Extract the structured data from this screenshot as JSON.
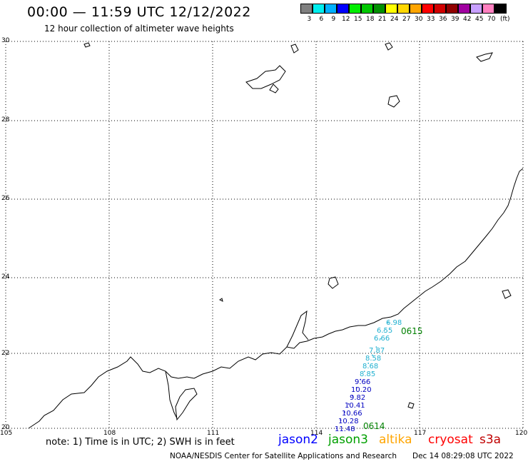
{
  "header": {
    "title": "00:00 — 11:59 UTC 12/12/2022",
    "subtitle": "12 hour collection of altimeter wave heights"
  },
  "legend": {
    "unit": "(ft)",
    "bins": [
      {
        "label": "3",
        "color": "#808080"
      },
      {
        "label": "6",
        "color": "#00eeee"
      },
      {
        "label": "9",
        "color": "#00b0ff"
      },
      {
        "label": "12",
        "color": "#0000ff"
      },
      {
        "label": "15",
        "color": "#00ee00"
      },
      {
        "label": "18",
        "color": "#00c800"
      },
      {
        "label": "21",
        "color": "#009000"
      },
      {
        "label": "24",
        "color": "#ffff00"
      },
      {
        "label": "27",
        "color": "#ffd700"
      },
      {
        "label": "30",
        "color": "#ffa500"
      },
      {
        "label": "33",
        "color": "#ff0000"
      },
      {
        "label": "36",
        "color": "#d00000"
      },
      {
        "label": "39",
        "color": "#900000"
      },
      {
        "label": "42",
        "color": "#a000a0"
      },
      {
        "label": "45",
        "color": "#c8a0ff"
      },
      {
        "label": "70",
        "color": "#ff80c0"
      },
      {
        "label": "",
        "color": "#000000"
      }
    ]
  },
  "map": {
    "lat_labels": [
      "30",
      "28",
      "26",
      "24",
      "22",
      "20"
    ],
    "lon_labels": [
      "105",
      "108",
      "111",
      "114",
      "117",
      "120"
    ],
    "observations": [
      {
        "value": "6.98",
        "color": "#20b0d0"
      },
      {
        "value": "6.55",
        "color": "#20b0d0"
      },
      {
        "value": "6.66",
        "color": "#20b0d0"
      },
      {
        "value": "7.87",
        "color": "#20b0d0"
      },
      {
        "value": "8.58",
        "color": "#20b0d0"
      },
      {
        "value": "8.68",
        "color": "#20b0d0"
      },
      {
        "value": "8.85",
        "color": "#20b0d0"
      },
      {
        "value": "9.66",
        "color": "#0000c0"
      },
      {
        "value": "10.20",
        "color": "#0000c0"
      },
      {
        "value": "9.82",
        "color": "#0000c0"
      },
      {
        "value": "10.41",
        "color": "#0000c0"
      },
      {
        "value": "10.66",
        "color": "#0000c0"
      },
      {
        "value": "10.28",
        "color": "#0000c0"
      },
      {
        "value": "11.48",
        "color": "#0000c0"
      }
    ],
    "pass_labels": [
      {
        "text": "0615",
        "color": "#008000"
      },
      {
        "text": "0614",
        "color": "#008000"
      }
    ]
  },
  "footer": {
    "note": "note: 1) Time is in UTC; 2) SWH is in feet",
    "satellites": [
      {
        "name": "jason2",
        "color": "#0000ff"
      },
      {
        "name": "jason3",
        "color": "#00a000"
      },
      {
        "name": "altika",
        "color": "#ffa500"
      },
      {
        "name": "cryosat",
        "color": "#ff0000"
      },
      {
        "name": "s3a",
        "color": "#c00000"
      }
    ],
    "credit": "NOAA/NESDIS Center for Satellite Applications and Research",
    "timestamp": "Dec 14 08:29:08 UTC 2022"
  }
}
